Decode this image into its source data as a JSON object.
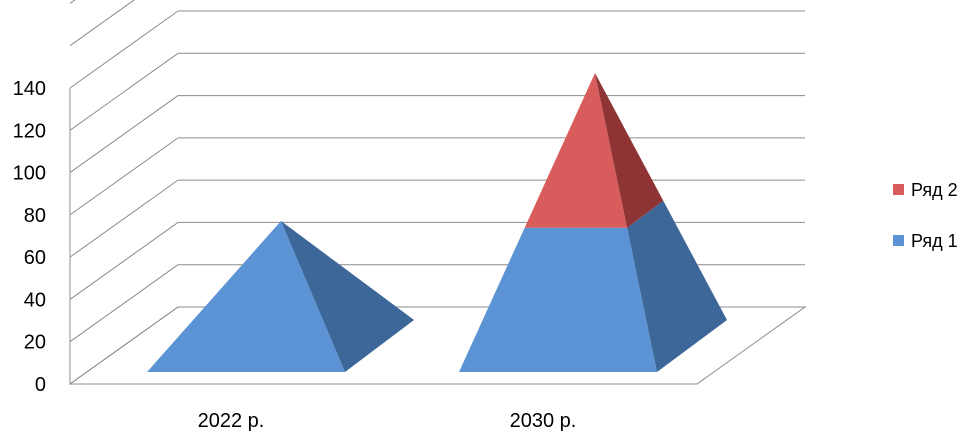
{
  "chart_data": {
    "type": "bar",
    "subtype": "3d-stacked-pyramid",
    "title": "",
    "xlabel": "",
    "ylabel": "",
    "categories": [
      "2022 р.",
      "2030 р."
    ],
    "series": [
      {
        "name": "Ряд 1",
        "values": [
          75,
          70
        ],
        "color": "#5b93d5",
        "side_color": "#3d6699"
      },
      {
        "name": "Ряд 2",
        "values": [
          0,
          75
        ],
        "color": "#d85c5c",
        "side_color": "#8f3434"
      }
    ],
    "ylim": [
      0,
      140
    ],
    "y_ticks": [
      "0",
      "20",
      "40",
      "60",
      "80",
      "100",
      "120",
      "140"
    ],
    "grid": true,
    "legend_position": "right",
    "legend_order": [
      "Ряд 2",
      "Ряд 1"
    ]
  }
}
